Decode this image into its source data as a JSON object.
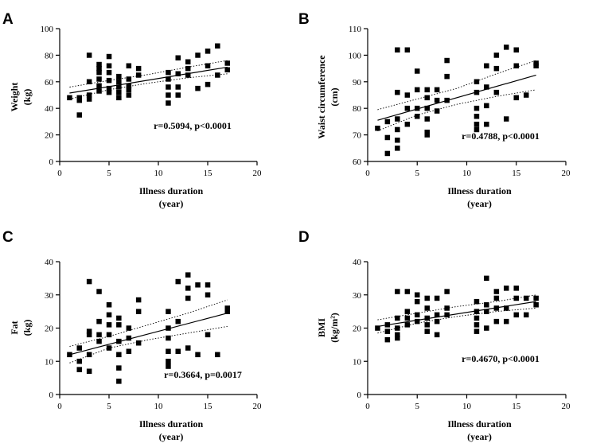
{
  "chart_data": [
    {
      "panel": "A",
      "type": "scatter",
      "ylabel": [
        "Weight",
        "(kg)"
      ],
      "xlabel": [
        "Illness duration",
        "(year)"
      ],
      "xlim": [
        0,
        20
      ],
      "xticks": [
        0,
        5,
        10,
        15,
        20
      ],
      "ylim": [
        0,
        100
      ],
      "yticks": [
        0,
        20,
        40,
        60,
        80,
        100
      ],
      "annotation": "r=0.5094, p<0.0001",
      "fit": {
        "x": [
          1,
          17
        ],
        "y": [
          51.5,
          71
        ]
      },
      "ci_upper": {
        "x": [
          1,
          5,
          9,
          13,
          17
        ],
        "y": [
          56,
          61,
          65.5,
          71,
          76
        ]
      },
      "ci_lower": {
        "x": [
          1,
          5,
          9,
          13,
          17
        ],
        "y": [
          47,
          54,
          59,
          63,
          66
        ]
      },
      "points": [
        [
          1,
          48
        ],
        [
          2,
          48
        ],
        [
          2,
          35
        ],
        [
          2,
          46
        ],
        [
          3,
          80
        ],
        [
          3,
          60
        ],
        [
          3,
          50
        ],
        [
          3,
          47
        ],
        [
          4,
          73
        ],
        [
          4,
          70
        ],
        [
          4,
          67
        ],
        [
          4,
          62
        ],
        [
          4,
          57
        ],
        [
          4,
          53
        ],
        [
          5,
          79
        ],
        [
          5,
          72
        ],
        [
          5,
          67
        ],
        [
          5,
          61
        ],
        [
          5,
          55
        ],
        [
          5,
          52
        ],
        [
          6,
          64
        ],
        [
          6,
          60
        ],
        [
          6,
          56
        ],
        [
          6,
          52
        ],
        [
          6,
          48
        ],
        [
          7,
          72
        ],
        [
          7,
          62
        ],
        [
          7,
          57
        ],
        [
          7,
          54
        ],
        [
          7,
          50
        ],
        [
          8,
          70
        ],
        [
          8,
          65
        ],
        [
          11,
          67
        ],
        [
          11,
          62
        ],
        [
          11,
          56
        ],
        [
          11,
          50
        ],
        [
          11,
          44
        ],
        [
          12,
          78
        ],
        [
          12,
          66
        ],
        [
          12,
          56
        ],
        [
          12,
          50
        ],
        [
          13,
          75
        ],
        [
          13,
          70
        ],
        [
          13,
          65
        ],
        [
          14,
          80
        ],
        [
          14,
          55
        ],
        [
          15,
          83
        ],
        [
          15,
          72
        ],
        [
          15,
          58
        ],
        [
          16,
          87
        ],
        [
          16,
          65
        ],
        [
          17,
          74
        ],
        [
          17,
          69
        ]
      ]
    },
    {
      "panel": "B",
      "type": "scatter",
      "ylabel": [
        "Waist circumference",
        "(cm)"
      ],
      "xlabel": [
        "Illness duration",
        "(year)"
      ],
      "xlim": [
        0,
        20
      ],
      "xticks": [
        0,
        5,
        10,
        15,
        20
      ],
      "ylim": [
        60,
        110
      ],
      "yticks": [
        60,
        70,
        80,
        90,
        100,
        110
      ],
      "annotation": "r=0.4788, p<0.0001",
      "fit": {
        "x": [
          1,
          17
        ],
        "y": [
          75.5,
          92.5
        ]
      },
      "ci_upper": {
        "x": [
          1,
          5,
          9,
          13,
          17
        ],
        "y": [
          79.5,
          83.5,
          87.5,
          93,
          98
        ]
      },
      "ci_lower": {
        "x": [
          1,
          5,
          9,
          13,
          17
        ],
        "y": [
          71.5,
          77.5,
          81.5,
          84.5,
          87
        ]
      },
      "points": [
        [
          1,
          72.5
        ],
        [
          2,
          69
        ],
        [
          2,
          63
        ],
        [
          2,
          75
        ],
        [
          3,
          102
        ],
        [
          3,
          86
        ],
        [
          3,
          76
        ],
        [
          3,
          72
        ],
        [
          3,
          68
        ],
        [
          3,
          65
        ],
        [
          4,
          102
        ],
        [
          4,
          85
        ],
        [
          4,
          80
        ],
        [
          4,
          74
        ],
        [
          5,
          94
        ],
        [
          5,
          87
        ],
        [
          5,
          80
        ],
        [
          5,
          77
        ],
        [
          6,
          87
        ],
        [
          6,
          84
        ],
        [
          6,
          80
        ],
        [
          6,
          76
        ],
        [
          6,
          71
        ],
        [
          6,
          70
        ],
        [
          7,
          87
        ],
        [
          7,
          83
        ],
        [
          7,
          79
        ],
        [
          8,
          98
        ],
        [
          8,
          92
        ],
        [
          8,
          83
        ],
        [
          11,
          90
        ],
        [
          11,
          86
        ],
        [
          11,
          80
        ],
        [
          11,
          77
        ],
        [
          11,
          74
        ],
        [
          11,
          72
        ],
        [
          12,
          96
        ],
        [
          12,
          88
        ],
        [
          12,
          81
        ],
        [
          12,
          74
        ],
        [
          13,
          100
        ],
        [
          13,
          95
        ],
        [
          13,
          86
        ],
        [
          14,
          103
        ],
        [
          14,
          76
        ],
        [
          15,
          102
        ],
        [
          15,
          96
        ],
        [
          15,
          84
        ],
        [
          16,
          85
        ],
        [
          17,
          97
        ],
        [
          17,
          96
        ]
      ]
    },
    {
      "panel": "C",
      "type": "scatter",
      "ylabel": [
        "Fat",
        "(kg)"
      ],
      "xlabel": [
        "Illness duration",
        "(year)"
      ],
      "xlim": [
        0,
        20
      ],
      "xticks": [
        0,
        5,
        10,
        15,
        20
      ],
      "ylim": [
        0,
        40
      ],
      "yticks": [
        0,
        10,
        20,
        30,
        40
      ],
      "annotation": "r=0.3664, p=0.0017",
      "fit": {
        "x": [
          1,
          17
        ],
        "y": [
          12,
          24.5
        ]
      },
      "ci_upper": {
        "x": [
          1,
          5,
          9,
          13,
          17
        ],
        "y": [
          14.5,
          17.5,
          21,
          24.5,
          28.5
        ]
      },
      "ci_lower": {
        "x": [
          1,
          5,
          9,
          13,
          17
        ],
        "y": [
          9.5,
          14,
          16.5,
          18.5,
          20.5
        ]
      },
      "points": [
        [
          1,
          12
        ],
        [
          2,
          14
        ],
        [
          2,
          10
        ],
        [
          2,
          7.5
        ],
        [
          3,
          34
        ],
        [
          3,
          19
        ],
        [
          3,
          18
        ],
        [
          3,
          12
        ],
        [
          3,
          7
        ],
        [
          4,
          31
        ],
        [
          4,
          22
        ],
        [
          4,
          18
        ],
        [
          4,
          16
        ],
        [
          5,
          27
        ],
        [
          5,
          24
        ],
        [
          5,
          21
        ],
        [
          5,
          18
        ],
        [
          5,
          14
        ],
        [
          6,
          23
        ],
        [
          6,
          21
        ],
        [
          6,
          16
        ],
        [
          6,
          12
        ],
        [
          6,
          8
        ],
        [
          6,
          4
        ],
        [
          7,
          20
        ],
        [
          7,
          17
        ],
        [
          7,
          13
        ],
        [
          8,
          28.5
        ],
        [
          8,
          25
        ],
        [
          8,
          15.5
        ],
        [
          11,
          25
        ],
        [
          11,
          20
        ],
        [
          11,
          17
        ],
        [
          11,
          13
        ],
        [
          11,
          10
        ],
        [
          11,
          8.5
        ],
        [
          12,
          34
        ],
        [
          12,
          22
        ],
        [
          12,
          13
        ],
        [
          13,
          36
        ],
        [
          13,
          32
        ],
        [
          13,
          29
        ],
        [
          13,
          14
        ],
        [
          14,
          33
        ],
        [
          14,
          12
        ],
        [
          15,
          33
        ],
        [
          15,
          30
        ],
        [
          15,
          18
        ],
        [
          16,
          12
        ],
        [
          17,
          26
        ],
        [
          17,
          25
        ]
      ]
    },
    {
      "panel": "D",
      "type": "scatter",
      "ylabel": [
        "BMI",
        "(kg/m²)"
      ],
      "xlabel": [
        "Illness duration",
        "(year)"
      ],
      "xlim": [
        0,
        20
      ],
      "xticks": [
        0,
        5,
        10,
        15,
        20
      ],
      "ylim": [
        0,
        40
      ],
      "yticks": [
        0,
        10,
        20,
        30,
        40
      ],
      "annotation": "r=0.4670, p<0.0001",
      "fit": {
        "x": [
          1,
          17
        ],
        "y": [
          20.5,
          28
        ]
      },
      "ci_upper": {
        "x": [
          1,
          5,
          9,
          13,
          17
        ],
        "y": [
          22.5,
          24.5,
          26.5,
          28,
          30
        ]
      },
      "ci_lower": {
        "x": [
          1,
          5,
          9,
          13,
          17
        ],
        "y": [
          18.5,
          21.5,
          23.5,
          25,
          26
        ]
      },
      "points": [
        [
          1,
          20
        ],
        [
          2,
          21
        ],
        [
          2,
          19
        ],
        [
          2,
          16.5
        ],
        [
          3,
          31
        ],
        [
          3,
          23
        ],
        [
          3,
          20
        ],
        [
          3,
          18
        ],
        [
          3,
          17
        ],
        [
          4,
          31
        ],
        [
          4,
          25
        ],
        [
          4,
          23
        ],
        [
          4,
          21
        ],
        [
          5,
          30
        ],
        [
          5,
          28
        ],
        [
          5,
          24
        ],
        [
          5,
          22
        ],
        [
          6,
          29
        ],
        [
          6,
          26
        ],
        [
          6,
          23
        ],
        [
          6,
          21
        ],
        [
          6,
          19
        ],
        [
          7,
          29
        ],
        [
          7,
          24
        ],
        [
          7,
          22
        ],
        [
          7,
          18
        ],
        [
          8,
          31
        ],
        [
          8,
          26
        ],
        [
          8,
          24
        ],
        [
          11,
          28
        ],
        [
          11,
          25
        ],
        [
          11,
          23
        ],
        [
          11,
          21
        ],
        [
          11,
          19
        ],
        [
          12,
          35
        ],
        [
          12,
          27
        ],
        [
          12,
          25
        ],
        [
          12,
          20
        ],
        [
          13,
          31
        ],
        [
          13,
          29
        ],
        [
          13,
          26
        ],
        [
          13,
          22
        ],
        [
          14,
          32
        ],
        [
          14,
          26
        ],
        [
          14,
          22
        ],
        [
          15,
          32
        ],
        [
          15,
          29
        ],
        [
          15,
          24
        ],
        [
          16,
          29
        ],
        [
          16,
          24
        ],
        [
          17,
          29
        ],
        [
          17,
          27
        ]
      ]
    }
  ]
}
